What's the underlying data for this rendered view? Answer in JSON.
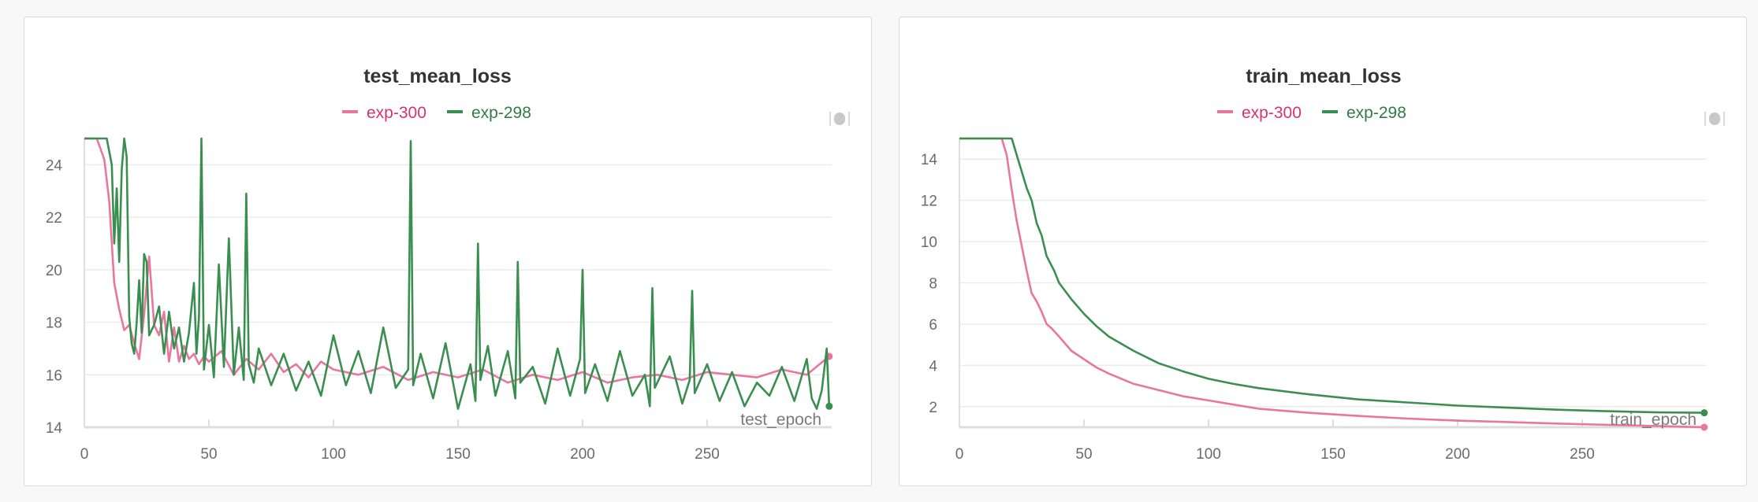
{
  "colors": {
    "exp300": "#e8769e",
    "exp298": "#3a8f50",
    "grid": "#ebebeb",
    "axis": "#dedede"
  },
  "chart_data": [
    {
      "type": "line",
      "title": "test_mean_loss",
      "xlabel": "test_epoch",
      "xlim": [
        0,
        300
      ],
      "ylim": [
        14,
        25
      ],
      "xticks": [
        0,
        50,
        100,
        150,
        200,
        250
      ],
      "yticks": [
        14,
        16,
        18,
        20,
        22,
        24
      ],
      "legend": "top-center",
      "series": [
        {
          "name": "exp-300",
          "color": "#e8769e",
          "x": [
            0,
            5,
            8,
            10,
            12,
            14,
            16,
            18,
            20,
            22,
            24,
            26,
            28,
            30,
            32,
            34,
            36,
            38,
            40,
            42,
            44,
            46,
            48,
            50,
            55,
            60,
            65,
            70,
            75,
            80,
            85,
            90,
            95,
            100,
            110,
            120,
            130,
            140,
            150,
            160,
            170,
            180,
            190,
            200,
            210,
            220,
            230,
            240,
            250,
            260,
            270,
            280,
            290,
            299
          ],
          "values": [
            25,
            25,
            24.2,
            22.6,
            19.5,
            18.5,
            17.7,
            17.9,
            17.2,
            16.6,
            18.3,
            20.5,
            17.9,
            17.5,
            18.4,
            16.5,
            17.8,
            16.5,
            17.1,
            16.6,
            16.8,
            16.4,
            16.7,
            16.5,
            16.9,
            16.0,
            16.6,
            16.2,
            16.8,
            16.1,
            16.4,
            15.9,
            16.5,
            16.2,
            16.0,
            16.3,
            15.8,
            16.1,
            15.9,
            16.2,
            15.7,
            16.0,
            15.8,
            16.1,
            15.7,
            15.9,
            16.0,
            15.8,
            16.1,
            16.0,
            15.9,
            16.2,
            16.0,
            16.7
          ]
        },
        {
          "name": "exp-298",
          "color": "#3a8f50",
          "x": [
            0,
            9,
            11,
            12,
            13,
            14,
            15,
            16,
            17,
            18,
            19,
            20,
            21,
            22,
            23,
            24,
            25,
            26,
            28,
            30,
            32,
            34,
            36,
            38,
            40,
            42,
            44,
            45,
            46,
            47,
            48,
            50,
            52,
            54,
            56,
            58,
            60,
            62,
            64,
            65,
            66,
            68,
            70,
            75,
            80,
            85,
            90,
            95,
            100,
            105,
            110,
            115,
            120,
            125,
            130,
            131,
            132,
            135,
            140,
            145,
            150,
            155,
            157,
            158,
            159,
            162,
            165,
            170,
            173,
            174,
            175,
            180,
            185,
            190,
            195,
            199,
            200,
            201,
            205,
            210,
            215,
            220,
            225,
            227,
            228,
            229,
            235,
            240,
            243,
            244,
            245,
            250,
            255,
            260,
            265,
            270,
            275,
            280,
            285,
            290,
            292,
            294,
            296,
            298,
            299
          ],
          "values": [
            25,
            25,
            24.0,
            21.0,
            23.1,
            20.3,
            23.8,
            25,
            24.3,
            18.2,
            17.2,
            16.8,
            18.0,
            19.6,
            17.6,
            20.6,
            20.3,
            17.5,
            17.9,
            18.6,
            16.8,
            18.4,
            17.0,
            17.8,
            16.5,
            17.6,
            19.5,
            16.8,
            18.2,
            25,
            16.2,
            17.9,
            15.9,
            20.2,
            16.3,
            21.2,
            16.0,
            17.8,
            15.8,
            22.9,
            16.4,
            15.7,
            17.0,
            15.6,
            16.8,
            15.4,
            16.5,
            15.2,
            17.5,
            15.6,
            16.9,
            15.3,
            17.8,
            15.5,
            16.2,
            24.9,
            15.6,
            16.8,
            15.1,
            17.2,
            14.7,
            16.4,
            15.0,
            21.0,
            15.8,
            17.1,
            15.2,
            16.9,
            15.1,
            20.3,
            15.7,
            16.3,
            14.9,
            17.0,
            15.2,
            16.6,
            20.0,
            15.3,
            16.4,
            15.0,
            16.9,
            15.2,
            16.0,
            14.8,
            19.3,
            15.5,
            16.7,
            14.9,
            15.8,
            19.2,
            15.3,
            16.4,
            15.0,
            16.1,
            14.8,
            15.7,
            15.2,
            16.3,
            15.0,
            16.6,
            15.1,
            14.7,
            15.4,
            17.0,
            14.8
          ]
        }
      ]
    },
    {
      "type": "line",
      "title": "train_mean_loss",
      "xlabel": "train_epoch",
      "xlim": [
        0,
        300
      ],
      "ylim": [
        1,
        15
      ],
      "xticks": [
        0,
        50,
        100,
        150,
        200,
        250
      ],
      "yticks": [
        2,
        4,
        6,
        8,
        10,
        12,
        14
      ],
      "legend": "top-center",
      "series": [
        {
          "name": "exp-300",
          "color": "#e8769e",
          "x": [
            0,
            17,
            19,
            21,
            23,
            25,
            27,
            29,
            31,
            33,
            35,
            37,
            40,
            45,
            50,
            55,
            60,
            70,
            80,
            90,
            100,
            110,
            120,
            140,
            160,
            180,
            200,
            220,
            240,
            260,
            280,
            299
          ],
          "values": [
            15,
            15,
            14.2,
            12.5,
            11.0,
            9.8,
            8.6,
            7.5,
            7.1,
            6.6,
            6.0,
            5.8,
            5.4,
            4.7,
            4.3,
            3.9,
            3.6,
            3.1,
            2.8,
            2.5,
            2.3,
            2.1,
            1.9,
            1.7,
            1.55,
            1.42,
            1.32,
            1.25,
            1.18,
            1.12,
            1.06,
            1.0
          ]
        },
        {
          "name": "exp-298",
          "color": "#3a8f50",
          "x": [
            0,
            21,
            23,
            25,
            27,
            29,
            31,
            33,
            35,
            38,
            40,
            45,
            50,
            55,
            60,
            70,
            80,
            90,
            100,
            110,
            120,
            140,
            160,
            180,
            200,
            220,
            240,
            260,
            280,
            299
          ],
          "values": [
            15,
            15,
            14.2,
            13.4,
            12.6,
            12.0,
            10.9,
            10.3,
            9.3,
            8.6,
            8.0,
            7.2,
            6.5,
            5.9,
            5.4,
            4.7,
            4.1,
            3.7,
            3.35,
            3.1,
            2.9,
            2.6,
            2.35,
            2.2,
            2.05,
            1.95,
            1.85,
            1.78,
            1.72,
            1.7
          ]
        }
      ]
    }
  ]
}
